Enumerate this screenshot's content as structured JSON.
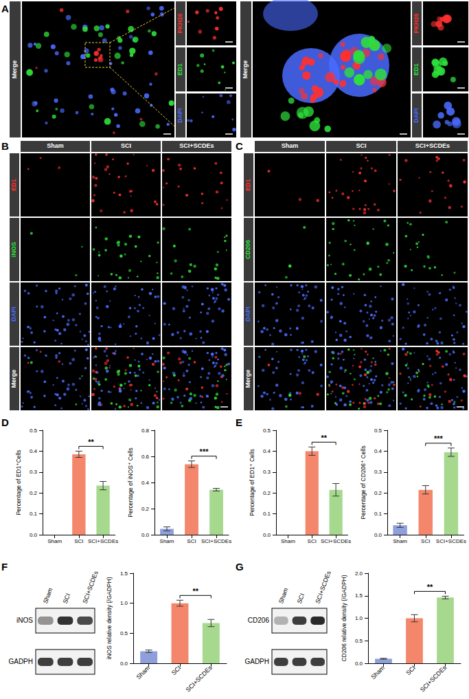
{
  "figure": {
    "letters": [
      "A",
      "B",
      "C",
      "D",
      "E",
      "F",
      "G"
    ],
    "panel_A": [
      {
        "main_label": {
          "text": "Merge",
          "color": "#ffffff"
        },
        "channels": [
          {
            "text": "PKH26",
            "color": "#ff3030"
          },
          {
            "text": "ED1",
            "color": "#2ee03a"
          },
          {
            "text": "DAPI",
            "color": "#4a6bff"
          }
        ]
      },
      {
        "main_label": {
          "text": "Merge",
          "color": "#ffffff"
        },
        "channels": [
          {
            "text": "PKH26",
            "color": "#ff3030"
          },
          {
            "text": "ED1",
            "color": "#2ee03a"
          },
          {
            "text": "DAPI",
            "color": "#4a6bff"
          }
        ]
      }
    ],
    "panel_B": {
      "columns": [
        "Sham",
        "SCI",
        "SCI+SCDEs"
      ],
      "rows": [
        {
          "text": "ED1",
          "color": "#ff3030"
        },
        {
          "text": "iNOS",
          "color": "#2ee03a"
        },
        {
          "text": "DAPI",
          "color": "#4a6bff"
        },
        {
          "text": "Merge",
          "color": "#ffffff"
        }
      ]
    },
    "panel_C": {
      "columns": [
        "Sham",
        "SCI",
        "SCI+SCDEs"
      ],
      "rows": [
        {
          "text": "ED1",
          "color": "#ff3030"
        },
        {
          "text": "CD206",
          "color": "#2ee03a"
        },
        {
          "text": "DAPI",
          "color": "#4a6bff"
        },
        {
          "text": "Merge",
          "color": "#ffffff"
        }
      ]
    },
    "blots": [
      {
        "lanes": [
          "Sham",
          "SCI",
          "SCI+SCDEs"
        ],
        "rows": [
          "iNOS",
          "GADPH"
        ]
      },
      {
        "lanes": [
          "Sham",
          "SCI",
          "SCI+SCDEs"
        ],
        "rows": [
          "CD206",
          "GADPH"
        ]
      }
    ]
  },
  "chart_data": [
    {
      "type": "bar",
      "y_label": "Percentage of ED1⁺Cells",
      "categories": [
        "Sham",
        "SCI",
        "SCI+SCDEs"
      ],
      "values": [
        0,
        0.385,
        0.235
      ],
      "errors": [
        0,
        0.015,
        0.02
      ],
      "colors": [
        "#8e9fdc",
        "#f4876b",
        "#a6d98e"
      ],
      "ylim": [
        0,
        0.5
      ],
      "yticks": [
        {
          "value": 0,
          "label": "0.0"
        },
        {
          "value": 0.1,
          "label": "0.1"
        },
        {
          "value": 0.2,
          "label": "0.2"
        },
        {
          "value": 0.3,
          "label": "0.3"
        },
        {
          "value": 0.4,
          "label": "0.4"
        },
        {
          "value": 0.5,
          "label": "0.5"
        }
      ],
      "significance": [
        {
          "between": [
            "SCI",
            "SCI+SCDEs"
          ],
          "label": "**"
        }
      ],
      "grid": false
    },
    {
      "type": "bar",
      "y_label": "Percentage of iNOS⁺ Cells",
      "categories": [
        "Sham",
        "SCI",
        "SCI+SCDEs"
      ],
      "values": [
        0.045,
        0.54,
        0.345
      ],
      "errors": [
        0.015,
        0.025,
        0.01
      ],
      "colors": [
        "#8e9fdc",
        "#f4876b",
        "#a6d98e"
      ],
      "ylim": [
        0,
        0.8
      ],
      "yticks": [
        {
          "value": 0,
          "label": "0.0"
        },
        {
          "value": 0.2,
          "label": "0.2"
        },
        {
          "value": 0.4,
          "label": "0.4"
        },
        {
          "value": 0.6,
          "label": "0.6"
        },
        {
          "value": 0.8,
          "label": "0.8"
        }
      ],
      "significance": [
        {
          "between": [
            "SCI",
            "SCI+SCDEs"
          ],
          "label": "***"
        }
      ],
      "grid": false
    },
    {
      "type": "bar",
      "y_label": "Percentage of ED1⁺ Cells",
      "categories": [
        "Sham",
        "SCI",
        "SCI+SCDEs"
      ],
      "values": [
        0,
        0.4,
        0.215
      ],
      "errors": [
        0,
        0.02,
        0.03
      ],
      "colors": [
        "#8e9fdc",
        "#f4876b",
        "#a6d98e"
      ],
      "ylim": [
        0,
        0.5
      ],
      "yticks": [
        {
          "value": 0,
          "label": "0.0"
        },
        {
          "value": 0.1,
          "label": "0.1"
        },
        {
          "value": 0.2,
          "label": "0.2"
        },
        {
          "value": 0.3,
          "label": "0.3"
        },
        {
          "value": 0.4,
          "label": "0.4"
        },
        {
          "value": 0.5,
          "label": "0.5"
        }
      ],
      "significance": [
        {
          "between": [
            "SCI",
            "SCI+SCDEs"
          ],
          "label": "**"
        }
      ],
      "grid": false
    },
    {
      "type": "bar",
      "y_label": "Percentage of CD206⁺ Cells",
      "categories": [
        "Sham",
        "SCI",
        "SCI+SCDEs"
      ],
      "values": [
        0.045,
        0.215,
        0.395
      ],
      "errors": [
        0.01,
        0.02,
        0.02
      ],
      "colors": [
        "#8e9fdc",
        "#f4876b",
        "#a6d98e"
      ],
      "ylim": [
        0,
        0.5
      ],
      "yticks": [
        {
          "value": 0,
          "label": "0.0"
        },
        {
          "value": 0.1,
          "label": "0.1"
        },
        {
          "value": 0.2,
          "label": "0.2"
        },
        {
          "value": 0.3,
          "label": "0.3"
        },
        {
          "value": 0.4,
          "label": "0.4"
        },
        {
          "value": 0.5,
          "label": "0.5"
        }
      ],
      "significance": [
        {
          "between": [
            "SCI",
            "SCI+SCDEs"
          ],
          "label": "***"
        }
      ],
      "grid": false
    },
    {
      "type": "bar",
      "y_label": "iNOS relative density (/GADPH)",
      "categories": [
        "Sham",
        "SCI",
        "SCI+SCDEs"
      ],
      "values": [
        0.2,
        1.0,
        0.67
      ],
      "errors": [
        0.02,
        0.05,
        0.06
      ],
      "colors": [
        "#8e9fdc",
        "#f4876b",
        "#a6d98e"
      ],
      "ylim": [
        0,
        1.5
      ],
      "yticks": [
        {
          "value": 0,
          "label": "0.0"
        },
        {
          "value": 0.5,
          "label": "0.5"
        },
        {
          "value": 1,
          "label": "1.0"
        },
        {
          "value": 1.5,
          "label": "1.5"
        }
      ],
      "significance": [
        {
          "between": [
            "SCI",
            "SCI+SCDEs"
          ],
          "label": "**"
        }
      ],
      "grid": false
    },
    {
      "type": "bar",
      "y_label": "CD206 relative density (/GADPH)",
      "categories": [
        "Sham",
        "SCI",
        "SCI+SCDEs"
      ],
      "values": [
        0.1,
        1.0,
        1.46
      ],
      "errors": [
        0.01,
        0.08,
        0.03
      ],
      "colors": [
        "#8e9fdc",
        "#f4876b",
        "#a6d98e"
      ],
      "ylim": [
        0,
        2
      ],
      "yticks": [
        {
          "value": 0,
          "label": "0.0"
        },
        {
          "value": 0.5,
          "label": "0.5"
        },
        {
          "value": 1,
          "label": "1.0"
        },
        {
          "value": 1.5,
          "label": "1.5"
        },
        {
          "value": 2,
          "label": "2.0"
        }
      ],
      "significance": [
        {
          "between": [
            "SCI",
            "SCI+SCDEs"
          ],
          "label": "**"
        }
      ],
      "grid": false
    }
  ]
}
